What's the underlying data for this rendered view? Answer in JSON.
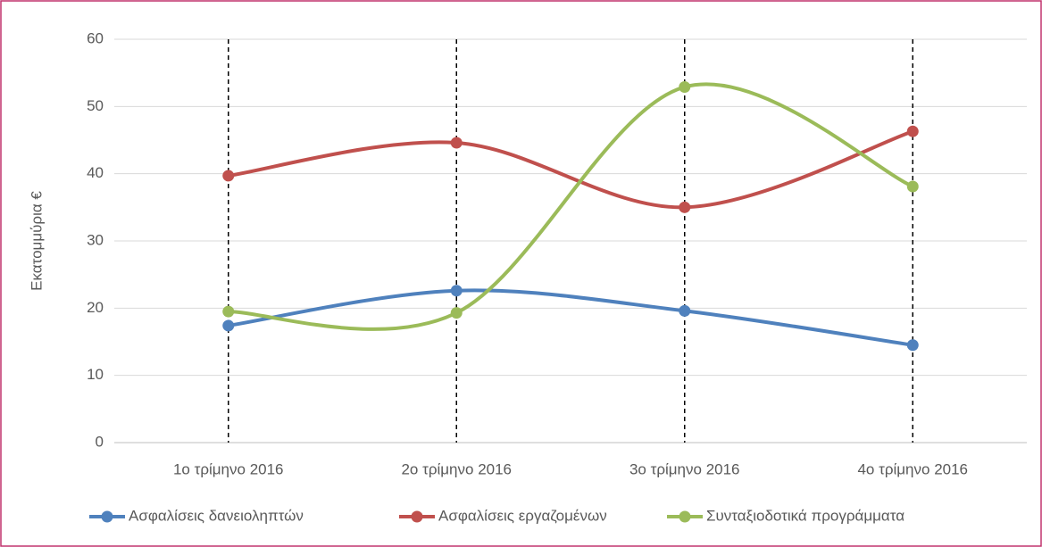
{
  "chart_data": {
    "type": "line",
    "smooth": true,
    "y_label": "Εκατομμύρια €",
    "categories": [
      "1ο τρίμηνο 2016",
      "2ο τρίμηνο 2016",
      "3ο τρίμηνο 2016",
      "4ο τρίμηνο 2016"
    ],
    "series": [
      {
        "name": "Ασφαλίσεις δανειοληπτών",
        "color": "#4f81bd",
        "values": [
          17.4,
          22.6,
          19.6,
          14.5
        ]
      },
      {
        "name": "Ασφαλίσεις εργαζομένων",
        "color": "#c0504d",
        "values": [
          39.7,
          44.6,
          35.0,
          46.3
        ]
      },
      {
        "name": "Συνταξιοδοτικά προγράμματα",
        "color": "#9bbb59",
        "values": [
          19.5,
          19.3,
          52.9,
          38.1
        ]
      }
    ],
    "ylim": [
      0,
      60
    ],
    "yticks": [
      0,
      10,
      20,
      30,
      40,
      50,
      60
    ],
    "grid": true,
    "drop_lines": true,
    "legend": "bottom"
  }
}
